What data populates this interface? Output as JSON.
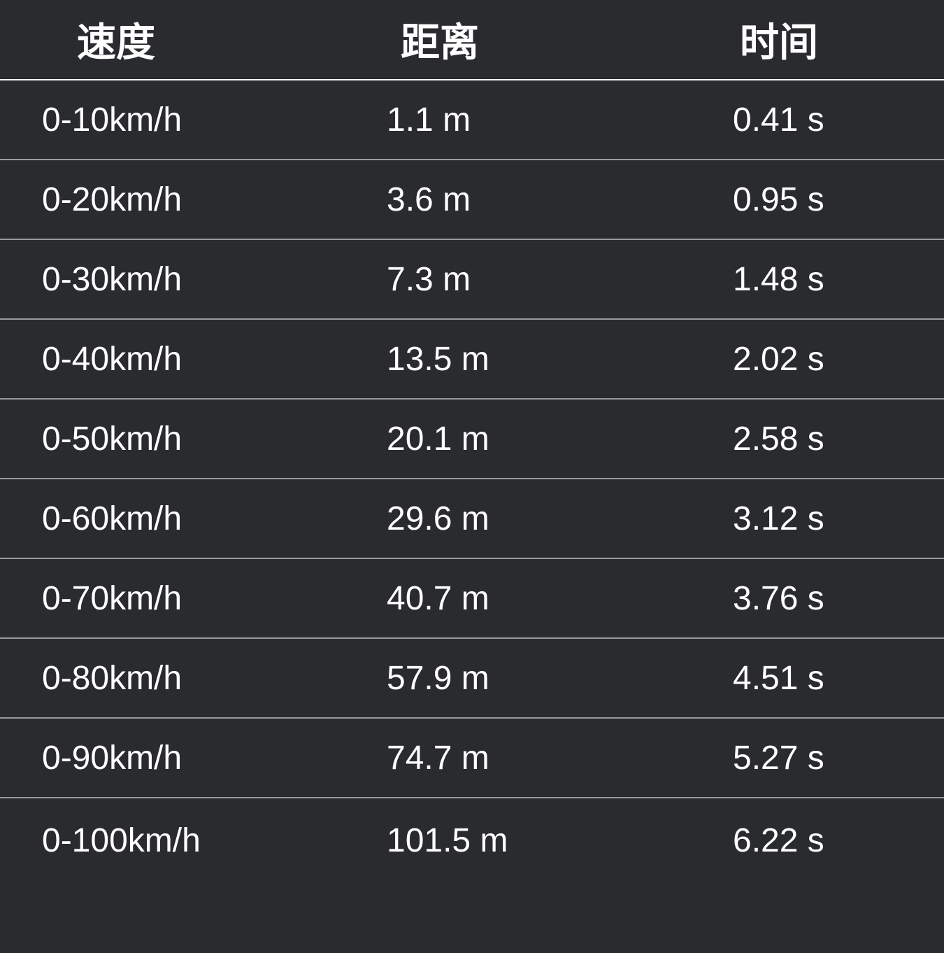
{
  "table": {
    "type": "table",
    "background_color": "#2a2b2f",
    "header_text_color": "#ffffff",
    "data_text_color": "#ffffff",
    "header_border_color": "#ffffff",
    "row_border_color": "#9a9a9d",
    "header_fontsize": 56,
    "data_fontsize": 48,
    "header_font_weight": 700,
    "data_font_weight": 400,
    "columns": [
      {
        "key": "speed",
        "label": "速度",
        "width_pct": 38,
        "align": "left"
      },
      {
        "key": "distance",
        "label": "距离",
        "width_pct": 30,
        "align": "left"
      },
      {
        "key": "time",
        "label": "时间",
        "width_pct": 32,
        "align": "left"
      }
    ],
    "rows": [
      {
        "speed": "0-10km/h",
        "distance": "1.1 m",
        "time": "0.41 s"
      },
      {
        "speed": "0-20km/h",
        "distance": "3.6 m",
        "time": "0.95 s"
      },
      {
        "speed": "0-30km/h",
        "distance": "7.3 m",
        "time": "1.48 s"
      },
      {
        "speed": "0-40km/h",
        "distance": "13.5 m",
        "time": "2.02 s"
      },
      {
        "speed": "0-50km/h",
        "distance": "20.1 m",
        "time": "2.58 s"
      },
      {
        "speed": "0-60km/h",
        "distance": "29.6 m",
        "time": "3.12 s"
      },
      {
        "speed": "0-70km/h",
        "distance": "40.7 m",
        "time": "3.76 s"
      },
      {
        "speed": "0-80km/h",
        "distance": "57.9 m",
        "time": "4.51 s"
      },
      {
        "speed": "0-90km/h",
        "distance": "74.7 m",
        "time": "5.27 s"
      },
      {
        "speed": "0-100km/h",
        "distance": "101.5 m",
        "time": "6.22 s"
      }
    ]
  }
}
